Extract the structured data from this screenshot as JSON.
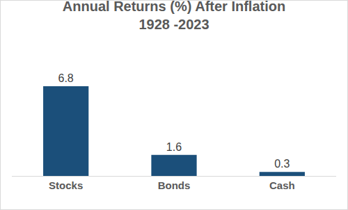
{
  "chart_data": {
    "type": "bar",
    "title": "Annual Returns (%) After Inflation\n1928 -2023",
    "categories": [
      "Stocks",
      "Bonds",
      "Cash"
    ],
    "values": [
      6.8,
      1.6,
      0.3
    ],
    "color": "#1b4f7a",
    "ylim": [
      0,
      7.8
    ],
    "grid": false,
    "data_labels": true,
    "tick_labels": "x"
  }
}
